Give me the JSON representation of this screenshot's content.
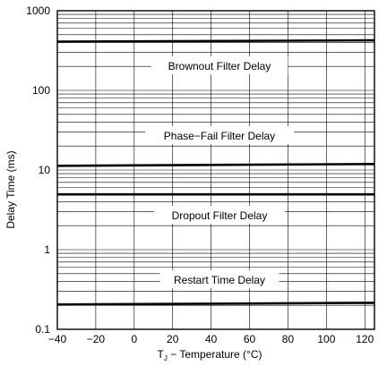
{
  "chart_data": {
    "type": "line",
    "xlabel": "T",
    "xlabel_sub": "J",
    "xlabel_rest": " − Temperature (°C)",
    "ylabel": "Delay Time (ms)",
    "x_ticks": [
      "−40",
      "−20",
      "0",
      "20",
      "40",
      "60",
      "80",
      "100",
      "120"
    ],
    "y_ticks": [
      "0.1",
      "1",
      "10",
      "100",
      "1000"
    ],
    "xlim": [
      -40,
      125
    ],
    "ylim": [
      0.1,
      1000
    ],
    "y_scale": "log",
    "grid": true,
    "series": [
      {
        "name": "Brownout Filter Delay",
        "x": [
          -40,
          125
        ],
        "y": [
          410,
          425
        ]
      },
      {
        "name": "Phase−Fail Filter Delay",
        "x": [
          -40,
          125
        ],
        "y": [
          11.3,
          11.9
        ]
      },
      {
        "name": "Dropout Filter Delay",
        "x": [
          -40,
          125
        ],
        "y": [
          4.95,
          4.95
        ]
      },
      {
        "name": "Restart Time Delay",
        "x": [
          -40,
          125
        ],
        "y": [
          0.205,
          0.215
        ]
      }
    ]
  }
}
